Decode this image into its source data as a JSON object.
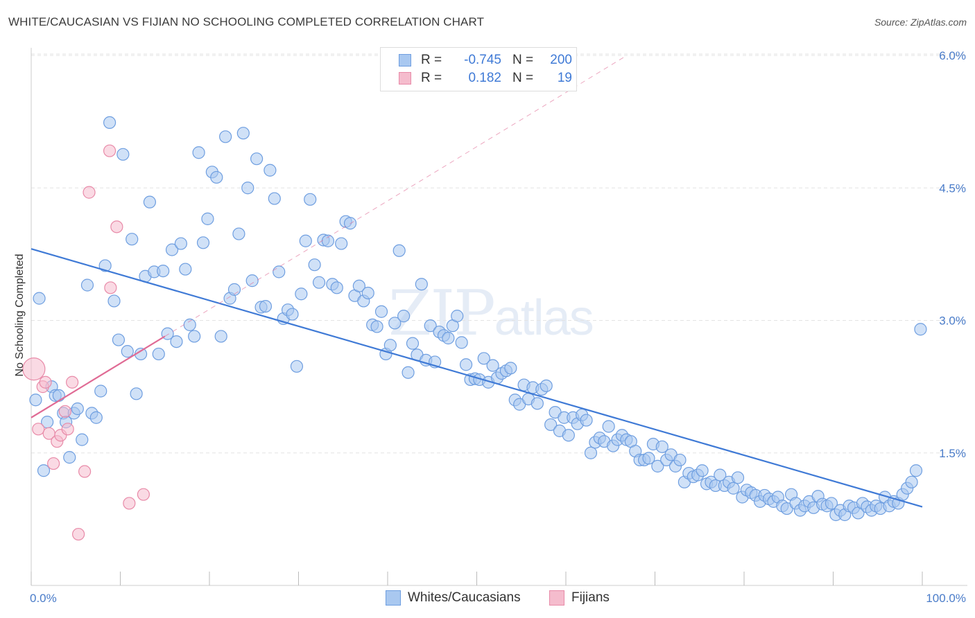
{
  "title": "WHITE/CAUCASIAN VS FIJIAN NO SCHOOLING COMPLETED CORRELATION CHART",
  "source": "Source: ZipAtlas.com",
  "watermark": {
    "zip": "ZIP",
    "atlas": "atlas"
  },
  "legend": {
    "rows": [
      {
        "r_label": "R =",
        "r_value": "-0.745",
        "n_label": "N =",
        "n_value": "200"
      },
      {
        "r_label": "R =",
        "r_value": "0.182",
        "n_label": "N =",
        "n_value": "19"
      }
    ]
  },
  "bottom_legend": [
    "Whites/Caucasians",
    "Fijians"
  ],
  "colors": {
    "blue_fill": "#a9c8f0",
    "blue_stroke": "#6e9ee0",
    "blue_line": "#3f7ad6",
    "pink_fill": "#f5bccd",
    "pink_stroke": "#e88aa8",
    "pink_line": "#e06b95",
    "grid": "#e3e3e3",
    "axis_text": "#4a7cc9"
  },
  "chart_data": {
    "type": "scatter",
    "title": "WHITE/CAUCASIAN VS FIJIAN NO SCHOOLING COMPLETED CORRELATION CHART",
    "xlabel": "",
    "ylabel": "No Schooling Completed",
    "xlim": [
      0,
      100
    ],
    "ylim": [
      0,
      6.2
    ],
    "y_ticks": [
      1.5,
      3.0,
      4.5,
      6.0
    ],
    "y_tick_labels": [
      "1.5%",
      "3.0%",
      "4.5%",
      "6.0%"
    ],
    "x_tick_labels": [
      "0.0%",
      "100.0%"
    ],
    "grid": true,
    "series": [
      {
        "name": "Whites/Caucasians",
        "trend": {
          "x": [
            0,
            100
          ],
          "y": [
            3.81,
            0.89
          ]
        },
        "points": [
          [
            0.5,
            2.1
          ],
          [
            0.9,
            3.25
          ],
          [
            1.4,
            1.3
          ],
          [
            1.8,
            1.85
          ],
          [
            2.3,
            2.25
          ],
          [
            2.7,
            2.15
          ],
          [
            3.1,
            2.15
          ],
          [
            3.6,
            1.95
          ],
          [
            3.9,
            1.85
          ],
          [
            4.3,
            1.45
          ],
          [
            4.8,
            1.95
          ],
          [
            5.2,
            2.0
          ],
          [
            5.7,
            1.65
          ],
          [
            6.3,
            3.4
          ],
          [
            6.8,
            1.95
          ],
          [
            7.3,
            1.9
          ],
          [
            7.8,
            2.2
          ],
          [
            8.3,
            3.62
          ],
          [
            8.8,
            5.24
          ],
          [
            9.3,
            3.22
          ],
          [
            9.8,
            2.78
          ],
          [
            10.3,
            4.88
          ],
          [
            10.8,
            2.65
          ],
          [
            11.3,
            3.92
          ],
          [
            11.8,
            2.17
          ],
          [
            12.3,
            2.62
          ],
          [
            12.8,
            3.5
          ],
          [
            13.3,
            4.34
          ],
          [
            13.8,
            3.55
          ],
          [
            14.3,
            2.62
          ],
          [
            14.8,
            3.56
          ],
          [
            15.3,
            2.85
          ],
          [
            15.8,
            3.8
          ],
          [
            16.3,
            2.76
          ],
          [
            16.8,
            3.87
          ],
          [
            17.3,
            3.58
          ],
          [
            17.8,
            2.95
          ],
          [
            18.3,
            2.82
          ],
          [
            18.8,
            4.9
          ],
          [
            19.3,
            3.88
          ],
          [
            19.8,
            4.15
          ],
          [
            20.3,
            4.68
          ],
          [
            20.8,
            4.62
          ],
          [
            21.3,
            2.82
          ],
          [
            21.8,
            5.08
          ],
          [
            22.3,
            3.25
          ],
          [
            22.8,
            3.35
          ],
          [
            23.3,
            3.98
          ],
          [
            23.8,
            5.12
          ],
          [
            24.3,
            4.5
          ],
          [
            24.8,
            3.45
          ],
          [
            25.3,
            4.83
          ],
          [
            25.8,
            3.15
          ],
          [
            26.3,
            3.16
          ],
          [
            26.8,
            4.7
          ],
          [
            27.3,
            4.38
          ],
          [
            27.8,
            3.55
          ],
          [
            28.3,
            3.02
          ],
          [
            28.8,
            3.12
          ],
          [
            29.3,
            3.07
          ],
          [
            29.8,
            2.48
          ],
          [
            30.3,
            3.3
          ],
          [
            30.8,
            3.9
          ],
          [
            31.3,
            4.37
          ],
          [
            31.8,
            3.63
          ],
          [
            32.3,
            3.43
          ],
          [
            32.8,
            3.91
          ],
          [
            33.3,
            3.9
          ],
          [
            33.8,
            3.41
          ],
          [
            34.3,
            3.37
          ],
          [
            34.8,
            3.87
          ],
          [
            35.3,
            4.12
          ],
          [
            35.8,
            4.1
          ],
          [
            36.3,
            3.28
          ],
          [
            36.8,
            3.39
          ],
          [
            37.3,
            3.22
          ],
          [
            37.8,
            3.31
          ],
          [
            38.3,
            2.95
          ],
          [
            38.8,
            2.93
          ],
          [
            39.3,
            3.1
          ],
          [
            39.8,
            2.62
          ],
          [
            40.3,
            2.72
          ],
          [
            40.8,
            2.97
          ],
          [
            41.3,
            3.79
          ],
          [
            41.8,
            3.05
          ],
          [
            42.3,
            2.41
          ],
          [
            42.8,
            2.74
          ],
          [
            43.3,
            2.61
          ],
          [
            43.8,
            3.41
          ],
          [
            44.3,
            2.55
          ],
          [
            44.8,
            2.94
          ],
          [
            45.3,
            2.53
          ],
          [
            45.8,
            2.87
          ],
          [
            46.3,
            2.83
          ],
          [
            46.8,
            2.8
          ],
          [
            47.3,
            2.94
          ],
          [
            47.8,
            3.05
          ],
          [
            48.3,
            2.75
          ],
          [
            48.8,
            2.5
          ],
          [
            49.3,
            2.33
          ],
          [
            49.8,
            2.34
          ],
          [
            50.3,
            2.33
          ],
          [
            50.8,
            2.57
          ],
          [
            51.3,
            2.3
          ],
          [
            51.8,
            2.49
          ],
          [
            52.3,
            2.35
          ],
          [
            52.8,
            2.4
          ],
          [
            53.3,
            2.43
          ],
          [
            53.8,
            2.46
          ],
          [
            54.3,
            2.1
          ],
          [
            54.8,
            2.05
          ],
          [
            55.3,
            2.27
          ],
          [
            55.8,
            2.11
          ],
          [
            56.3,
            2.24
          ],
          [
            56.8,
            2.06
          ],
          [
            57.3,
            2.22
          ],
          [
            57.8,
            2.26
          ],
          [
            58.3,
            1.82
          ],
          [
            58.8,
            1.96
          ],
          [
            59.3,
            1.75
          ],
          [
            59.8,
            1.9
          ],
          [
            60.3,
            1.7
          ],
          [
            60.8,
            1.9
          ],
          [
            61.3,
            1.83
          ],
          [
            61.8,
            1.93
          ],
          [
            62.3,
            1.87
          ],
          [
            62.8,
            1.5
          ],
          [
            63.3,
            1.62
          ],
          [
            63.8,
            1.67
          ],
          [
            64.3,
            1.63
          ],
          [
            64.8,
            1.8
          ],
          [
            65.3,
            1.58
          ],
          [
            65.8,
            1.65
          ],
          [
            66.3,
            1.7
          ],
          [
            66.8,
            1.65
          ],
          [
            67.3,
            1.63
          ],
          [
            67.8,
            1.52
          ],
          [
            68.3,
            1.42
          ],
          [
            68.8,
            1.42
          ],
          [
            69.3,
            1.44
          ],
          [
            69.8,
            1.6
          ],
          [
            70.3,
            1.35
          ],
          [
            70.8,
            1.57
          ],
          [
            71.3,
            1.42
          ],
          [
            71.8,
            1.48
          ],
          [
            72.3,
            1.35
          ],
          [
            72.8,
            1.42
          ],
          [
            73.3,
            1.17
          ],
          [
            73.8,
            1.27
          ],
          [
            74.3,
            1.23
          ],
          [
            74.8,
            1.25
          ],
          [
            75.3,
            1.3
          ],
          [
            75.8,
            1.15
          ],
          [
            76.3,
            1.17
          ],
          [
            76.8,
            1.13
          ],
          [
            77.3,
            1.25
          ],
          [
            77.8,
            1.13
          ],
          [
            78.3,
            1.17
          ],
          [
            78.8,
            1.1
          ],
          [
            79.3,
            1.22
          ],
          [
            79.8,
            1.0
          ],
          [
            80.3,
            1.08
          ],
          [
            80.8,
            1.05
          ],
          [
            81.3,
            1.02
          ],
          [
            81.8,
            0.95
          ],
          [
            82.3,
            1.02
          ],
          [
            82.8,
            0.98
          ],
          [
            83.3,
            0.95
          ],
          [
            83.8,
            1.0
          ],
          [
            84.3,
            0.9
          ],
          [
            84.8,
            0.87
          ],
          [
            85.3,
            1.03
          ],
          [
            85.8,
            0.93
          ],
          [
            86.3,
            0.85
          ],
          [
            86.8,
            0.9
          ],
          [
            87.3,
            0.95
          ],
          [
            87.8,
            0.88
          ],
          [
            88.3,
            1.01
          ],
          [
            88.8,
            0.92
          ],
          [
            89.3,
            0.9
          ],
          [
            89.8,
            0.93
          ],
          [
            90.3,
            0.8
          ],
          [
            90.8,
            0.85
          ],
          [
            91.3,
            0.8
          ],
          [
            91.8,
            0.9
          ],
          [
            92.3,
            0.88
          ],
          [
            92.8,
            0.82
          ],
          [
            93.3,
            0.93
          ],
          [
            93.8,
            0.89
          ],
          [
            94.3,
            0.85
          ],
          [
            94.8,
            0.9
          ],
          [
            95.3,
            0.87
          ],
          [
            95.8,
            1.0
          ],
          [
            96.3,
            0.9
          ],
          [
            96.8,
            0.95
          ],
          [
            97.3,
            0.93
          ],
          [
            97.8,
            1.03
          ],
          [
            98.3,
            1.1
          ],
          [
            98.8,
            1.17
          ],
          [
            99.3,
            1.3
          ],
          [
            99.8,
            2.9
          ]
        ]
      },
      {
        "name": "Fijians",
        "trend": {
          "x": [
            0,
            15
          ],
          "y": [
            1.9,
            2.82
          ]
        },
        "points": [
          [
            0.3,
            2.45
          ],
          [
            0.8,
            1.77
          ],
          [
            1.3,
            2.25
          ],
          [
            1.6,
            2.3
          ],
          [
            2.0,
            1.72
          ],
          [
            2.5,
            1.38
          ],
          [
            2.9,
            1.63
          ],
          [
            3.3,
            1.7
          ],
          [
            3.8,
            1.97
          ],
          [
            4.1,
            1.77
          ],
          [
            4.6,
            2.3
          ],
          [
            5.3,
            0.58
          ],
          [
            6.0,
            1.29
          ],
          [
            6.5,
            4.45
          ],
          [
            8.8,
            4.92
          ],
          [
            8.9,
            3.37
          ],
          [
            9.6,
            4.06
          ],
          [
            11.0,
            0.93
          ],
          [
            12.6,
            1.03
          ]
        ]
      }
    ]
  }
}
